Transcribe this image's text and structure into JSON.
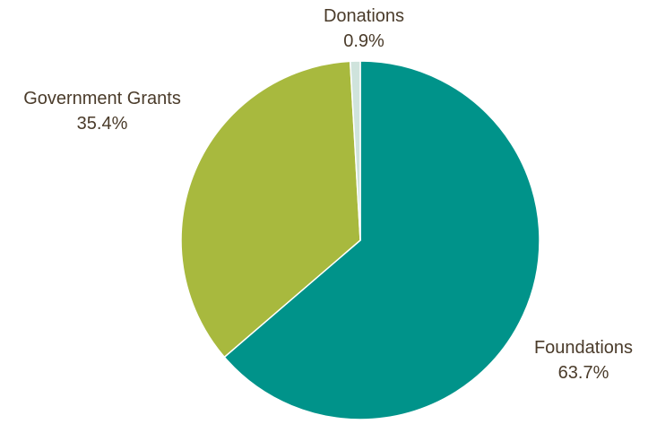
{
  "chart_data": {
    "type": "pie",
    "title": "",
    "slices": [
      {
        "label": "Foundations",
        "value": 63.7,
        "display": "63.7%",
        "color": "#00938a"
      },
      {
        "label": "Government Grants",
        "value": 35.4,
        "display": "35.4%",
        "color": "#a8b93e"
      },
      {
        "label": "Donations",
        "value": 0.9,
        "display": "0.9%",
        "color": "#cfe3dc"
      }
    ],
    "start": "12 o'clock",
    "direction": "clockwise",
    "legend": "none",
    "label_color": "#4a3b2a",
    "separator_color": "#ffffff"
  }
}
